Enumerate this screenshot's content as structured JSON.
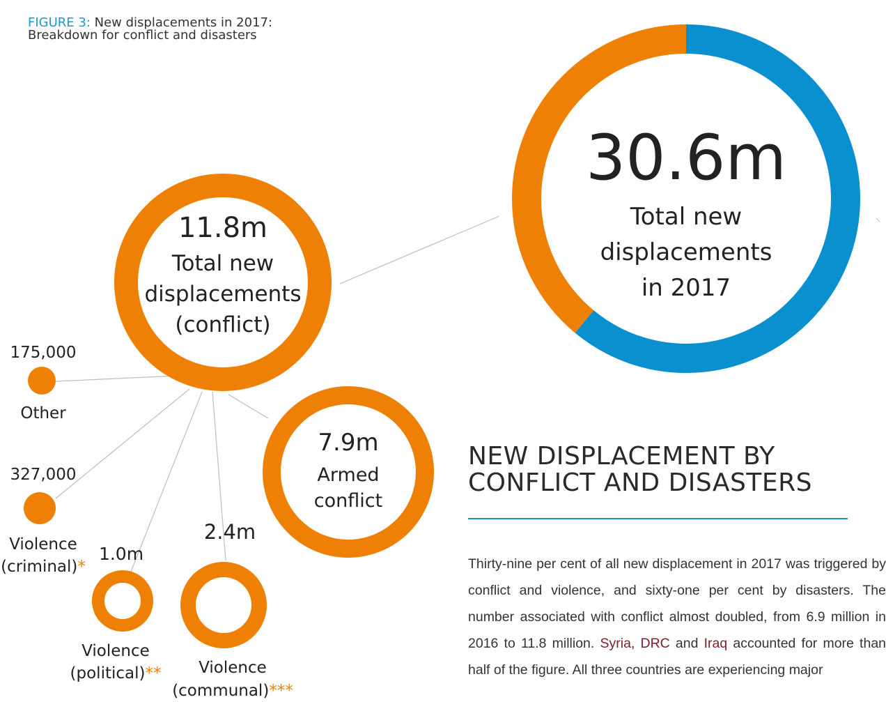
{
  "caption": {
    "lead": "FIGURE 3:",
    "line1": "New displacements in 2017:",
    "line2": "Breakdown for conflict and disasters"
  },
  "colors": {
    "conflict": "#ee8105",
    "disasters": "#0a8fcf",
    "connector": "#bdbdbd",
    "accent": "#1a9ad6",
    "asterisk": "#ee8105"
  },
  "chart_data": {
    "type": "pie",
    "total": {
      "value": "30.6m",
      "label_lines": [
        "Total new",
        "displacements",
        "in 2017"
      ],
      "slices": [
        {
          "name": "Conflict",
          "share": 39,
          "value_m": 11.8
        },
        {
          "name": "Disasters",
          "share": 61,
          "value_m": 18.8
        }
      ]
    },
    "conflict": {
      "value": "11.8m",
      "label_lines": [
        "Total new",
        "displacements",
        "(conflict)"
      ]
    },
    "breakdown": [
      {
        "id": "armed",
        "value": "7.9m",
        "label_lines": [
          "Armed",
          "conflict"
        ],
        "stars": ""
      },
      {
        "id": "communal",
        "value": "2.4m",
        "label_lines": [
          "Violence",
          "(communal)"
        ],
        "stars": "***"
      },
      {
        "id": "political",
        "value": "1.0m",
        "label_lines": [
          "Violence",
          "(political)"
        ],
        "stars": "**"
      },
      {
        "id": "criminal",
        "value": "327,000",
        "label_lines": [
          "Violence",
          "(criminal)"
        ],
        "stars": "*"
      },
      {
        "id": "other",
        "value": "175,000",
        "label_lines": [
          "Other"
        ],
        "stars": ""
      }
    ]
  },
  "section": {
    "title_line1": "NEW DISPLACEMENT BY",
    "title_line2": "CONFLICT AND DISASTERS"
  },
  "body": {
    "t1": "Thirty-nine per cent of all new displacement in 2017 was triggered by conflict and violence, and sixty-one per cent by disasters. The number associated with conflict almost doubled, from 6.9 million in 2016 to 11.8 million. ",
    "c1": "Syria",
    "t2": ", ",
    "c2": "DRC",
    "t3": " and ",
    "c3": "Iraq",
    "t4": " accounted for more than half of the figure. All three countries are experiencing major"
  }
}
